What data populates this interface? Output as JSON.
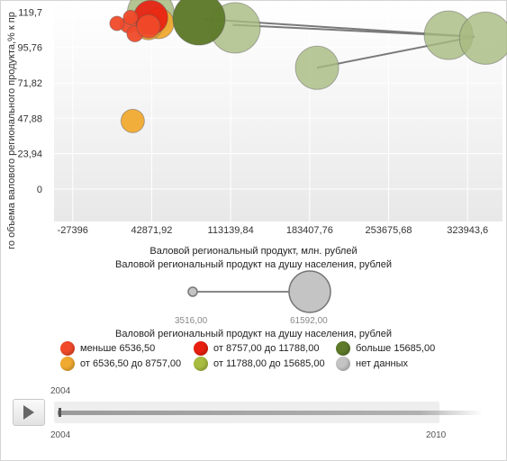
{
  "chart_data": {
    "type": "scatter",
    "subtype": "bubble",
    "xlabel": "Валовой региональный продукт, млн. рублей",
    "ylabel": "го объема валового регионального продукта,% к пр",
    "x_ticks": [
      "-27396",
      "42871,92",
      "113139,84",
      "183407,76",
      "253675,68",
      "323943,6"
    ],
    "x_tick_values": [
      -27396,
      42871.92,
      113139.84,
      183407.76,
      253675.68,
      323943.6
    ],
    "y_ticks": [
      "0",
      "23,94",
      "47,88",
      "71,82",
      "95,76",
      "119,7"
    ],
    "y_tick_values": [
      0,
      23.94,
      47.88,
      71.82,
      95.76,
      119.7
    ],
    "xlim": [
      -44000,
      355000
    ],
    "ylim": [
      -22,
      126
    ],
    "grid": true,
    "size_legend": {
      "title": "Валовой региональный продукт на душу населения, рублей",
      "min_label": "3516,00",
      "max_label": "61592,00"
    },
    "color_legend": {
      "title": "Валовой региональный продукт на душу населения, рублей",
      "items": [
        {
          "label": "меньше 6536,50",
          "color": "#f04a2a"
        },
        {
          "label": "от 6536,50 до 8757,00",
          "color": "#f0aa30"
        },
        {
          "label": "от 8757,00 до 11788,00",
          "color": "#e81f10"
        },
        {
          "label": "от 11788,00 до 15685,00",
          "color": "#a8bc40"
        },
        {
          "label": "больше 15685,00",
          "color": "#5e7a2a"
        },
        {
          "label": "нет данных",
          "color": "#c4c4c4"
        }
      ]
    },
    "trails": [
      {
        "points": [
          [
            330000,
            103
          ],
          [
            190000,
            82
          ]
        ]
      },
      {
        "points": [
          [
            330000,
            103
          ],
          [
            115000,
            111
          ]
        ]
      },
      {
        "points": [
          [
            330000,
            103
          ],
          [
            88000,
            115
          ]
        ]
      }
    ],
    "bubbles": [
      {
        "x": 42000,
        "y": 119,
        "r": 26,
        "color": "#a7ba80",
        "opacity": 0.85
      },
      {
        "x": 117000,
        "y": 109,
        "r": 28,
        "color": "#a7ba80",
        "opacity": 0.8
      },
      {
        "x": 190000,
        "y": 82,
        "r": 24,
        "color": "#a7ba80",
        "opacity": 0.8
      },
      {
        "x": 307000,
        "y": 104,
        "r": 27,
        "color": "#a7ba80",
        "opacity": 0.8
      },
      {
        "x": 340000,
        "y": 102,
        "r": 29,
        "color": "#a7ba80",
        "opacity": 0.8
      },
      {
        "x": 49000,
        "y": 112,
        "r": 17,
        "color": "#f0aa30",
        "opacity": 0.95
      },
      {
        "x": 40000,
        "y": 110,
        "r": 15,
        "color": "#f0aa30",
        "opacity": 0.95
      },
      {
        "x": 42000,
        "y": 116,
        "r": 19,
        "color": "#e81f10",
        "opacity": 0.92
      },
      {
        "x": 22000,
        "y": 111,
        "r": 9,
        "color": "#f04a2a",
        "opacity": 0.95
      },
      {
        "x": 28000,
        "y": 105,
        "r": 9,
        "color": "#f04a2a",
        "opacity": 0.95
      },
      {
        "x": 40000,
        "y": 110,
        "r": 13,
        "color": "#f04a2a",
        "opacity": 0.9
      },
      {
        "x": 12000,
        "y": 112,
        "r": 8,
        "color": "#f04a2a",
        "opacity": 0.95
      },
      {
        "x": 24000,
        "y": 116,
        "r": 8,
        "color": "#f04a2a",
        "opacity": 0.95
      },
      {
        "x": 26000,
        "y": 46,
        "r": 13,
        "color": "#f0aa30",
        "opacity": 0.95
      },
      {
        "x": 85000,
        "y": 115,
        "r": 29,
        "color": "#5e7a2a",
        "opacity": 0.97
      }
    ]
  },
  "timeline": {
    "current_year": "2004",
    "start_year": "2004",
    "end_year": "2010"
  }
}
